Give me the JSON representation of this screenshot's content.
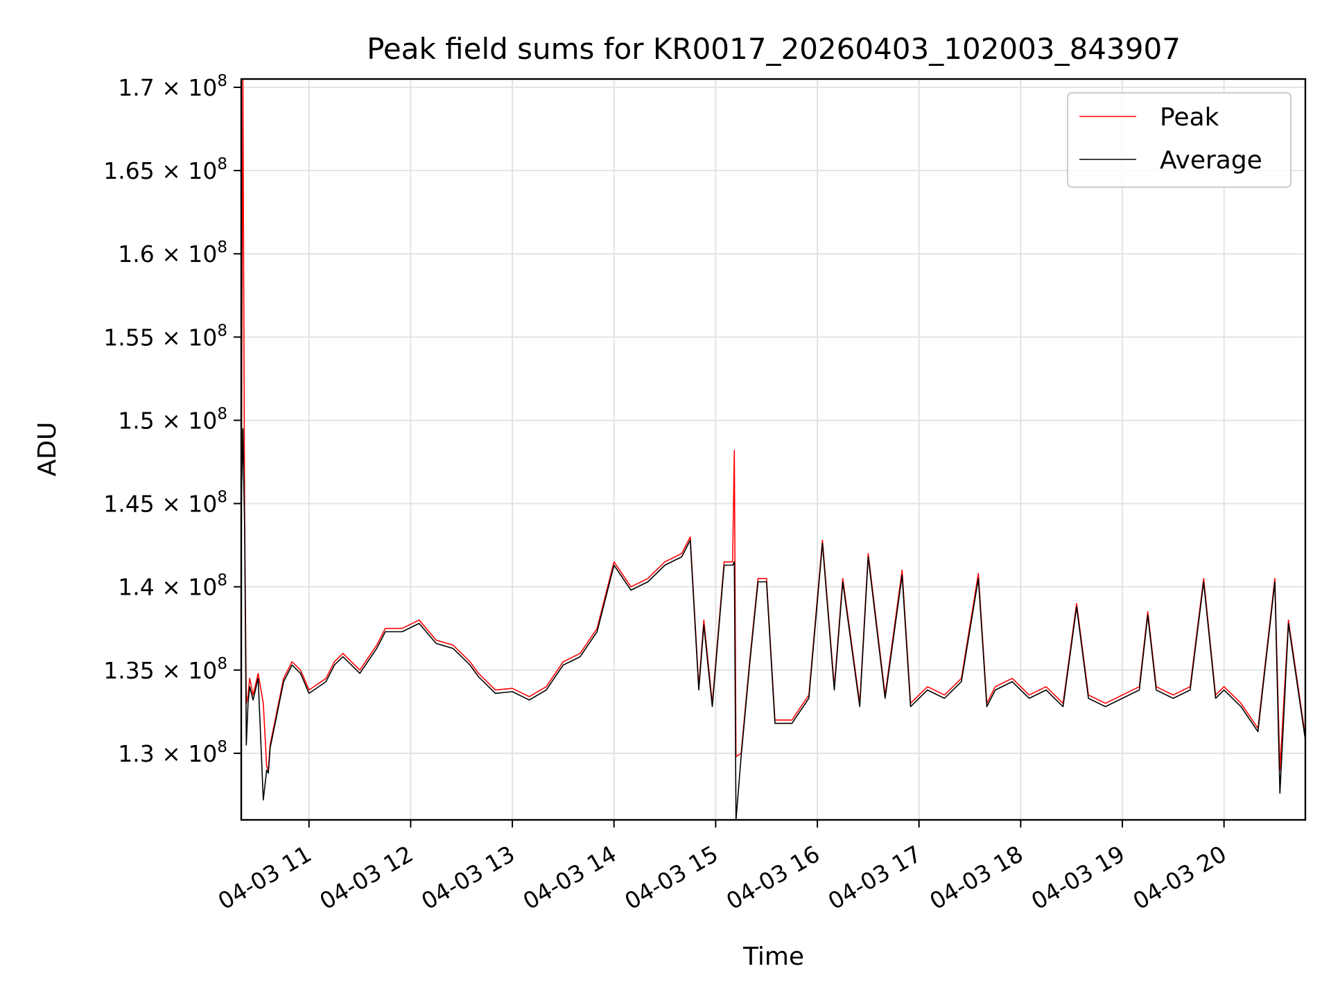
{
  "chart_data": {
    "type": "line",
    "title": "Peak field sums for KR0017_20260403_102003_843907",
    "xlabel": "Time",
    "ylabel": "ADU",
    "xlim": [
      "04-03 10:20",
      "04-03 20:48"
    ],
    "ylim": [
      126000000,
      170500000
    ],
    "grid": true,
    "legend_position": "top-right",
    "x_ticks": [
      "04-03 11",
      "04-03 12",
      "04-03 13",
      "04-03 14",
      "04-03 15",
      "04-03 16",
      "04-03 17",
      "04-03 18",
      "04-03 19",
      "04-03 20"
    ],
    "y_ticks": [
      {
        "value": 130000000,
        "mantissa": "1.3"
      },
      {
        "value": 135000000,
        "mantissa": "1.35"
      },
      {
        "value": 140000000,
        "mantissa": "1.4"
      },
      {
        "value": 145000000,
        "mantissa": "1.45"
      },
      {
        "value": 150000000,
        "mantissa": "1.5"
      },
      {
        "value": 155000000,
        "mantissa": "1.55"
      },
      {
        "value": 160000000,
        "mantissa": "1.6"
      },
      {
        "value": 165000000,
        "mantissa": "1.65"
      },
      {
        "value": 170000000,
        "mantissa": "1.7"
      }
    ],
    "y_tick_suffix": "× 10",
    "y_tick_exponent": "8",
    "series": [
      {
        "name": "Peak",
        "color": "#ff0000",
        "x": [
          "04-03 10:20",
          "04-03 10:21",
          "04-03 10:22",
          "04-03 10:23",
          "04-03 10:24",
          "04-03 10:25",
          "04-03 10:27",
          "04-03 10:30",
          "04-03 10:33",
          "04-03 10:35",
          "04-03 10:36",
          "04-03 10:37",
          "04-03 10:40",
          "04-03 10:45",
          "04-03 10:50",
          "04-03 10:55",
          "04-03 11:00",
          "04-03 11:10",
          "04-03 11:15",
          "04-03 11:20",
          "04-03 11:30",
          "04-03 11:40",
          "04-03 11:45",
          "04-03 11:55",
          "04-03 12:05",
          "04-03 12:15",
          "04-03 12:25",
          "04-03 12:35",
          "04-03 12:40",
          "04-03 12:50",
          "04-03 13:00",
          "04-03 13:10",
          "04-03 13:20",
          "04-03 13:30",
          "04-03 13:40",
          "04-03 13:50",
          "04-03 14:00",
          "04-03 14:10",
          "04-03 14:20",
          "04-03 14:30",
          "04-03 14:40",
          "04-03 14:45",
          "04-03 14:50",
          "04-03 14:53",
          "04-03 14:58",
          "04-03 15:05",
          "04-03 15:10",
          "04-03 15:11",
          "04-03 15:12",
          "04-03 15:15",
          "04-03 15:20",
          "04-03 15:25",
          "04-03 15:30",
          "04-03 15:35",
          "04-03 15:45",
          "04-03 15:55",
          "04-03 16:03",
          "04-03 16:10",
          "04-03 16:15",
          "04-03 16:25",
          "04-03 16:30",
          "04-03 16:40",
          "04-03 16:50",
          "04-03 16:55",
          "04-03 17:05",
          "04-03 17:15",
          "04-03 17:25",
          "04-03 17:35",
          "04-03 17:40",
          "04-03 17:45",
          "04-03 17:55",
          "04-03 18:05",
          "04-03 18:15",
          "04-03 18:25",
          "04-03 18:33",
          "04-03 18:40",
          "04-03 18:50",
          "04-03 19:00",
          "04-03 19:10",
          "04-03 19:15",
          "04-03 19:20",
          "04-03 19:30",
          "04-03 19:40",
          "04-03 19:48",
          "04-03 19:55",
          "04-03 20:00",
          "04-03 20:10",
          "04-03 20:20",
          "04-03 20:30",
          "04-03 20:33",
          "04-03 20:38",
          "04-03 20:43",
          "04-03 20:48"
        ],
        "y": [
          144800000,
          170500000,
          144200000,
          133000000,
          133500000,
          134500000,
          133500000,
          134800000,
          133000000,
          129200000,
          129000000,
          130500000,
          132000000,
          134500000,
          135500000,
          135000000,
          133800000,
          134500000,
          135500000,
          136000000,
          135000000,
          136500000,
          137500000,
          137500000,
          138000000,
          136800000,
          136500000,
          135500000,
          134800000,
          133800000,
          133900000,
          133400000,
          134000000,
          135500000,
          136000000,
          137500000,
          141500000,
          140000000,
          140500000,
          141500000,
          142000000,
          143000000,
          134000000,
          138000000,
          133000000,
          141500000,
          141500000,
          148200000,
          129800000,
          130000000,
          135500000,
          140500000,
          140500000,
          132000000,
          132000000,
          133500000,
          142800000,
          134000000,
          140500000,
          133000000,
          142000000,
          133500000,
          141000000,
          133000000,
          134000000,
          133500000,
          134500000,
          140800000,
          133000000,
          134000000,
          134500000,
          133500000,
          134000000,
          133000000,
          139000000,
          133500000,
          133000000,
          133500000,
          134000000,
          138500000,
          134000000,
          133500000,
          134000000,
          140500000,
          133500000,
          134000000,
          133000000,
          131500000,
          140500000,
          129000000,
          138000000,
          134500000,
          131000000
        ]
      },
      {
        "name": "Average",
        "color": "#000000",
        "x": [
          "04-03 10:20",
          "04-03 10:21",
          "04-03 10:22",
          "04-03 10:23",
          "04-03 10:24",
          "04-03 10:25",
          "04-03 10:27",
          "04-03 10:30",
          "04-03 10:33",
          "04-03 10:35",
          "04-03 10:36",
          "04-03 10:37",
          "04-03 10:40",
          "04-03 10:45",
          "04-03 10:50",
          "04-03 10:55",
          "04-03 11:00",
          "04-03 11:10",
          "04-03 11:15",
          "04-03 11:20",
          "04-03 11:30",
          "04-03 11:40",
          "04-03 11:45",
          "04-03 11:55",
          "04-03 12:05",
          "04-03 12:15",
          "04-03 12:25",
          "04-03 12:35",
          "04-03 12:40",
          "04-03 12:50",
          "04-03 13:00",
          "04-03 13:10",
          "04-03 13:20",
          "04-03 13:30",
          "04-03 13:40",
          "04-03 13:50",
          "04-03 14:00",
          "04-03 14:10",
          "04-03 14:20",
          "04-03 14:30",
          "04-03 14:40",
          "04-03 14:45",
          "04-03 14:50",
          "04-03 14:53",
          "04-03 14:58",
          "04-03 15:05",
          "04-03 15:10",
          "04-03 15:11",
          "04-03 15:12",
          "04-03 15:15",
          "04-03 15:20",
          "04-03 15:25",
          "04-03 15:30",
          "04-03 15:35",
          "04-03 15:45",
          "04-03 15:55",
          "04-03 16:03",
          "04-03 16:10",
          "04-03 16:15",
          "04-03 16:25",
          "04-03 16:30",
          "04-03 16:40",
          "04-03 16:50",
          "04-03 16:55",
          "04-03 17:05",
          "04-03 17:15",
          "04-03 17:25",
          "04-03 17:35",
          "04-03 17:40",
          "04-03 17:45",
          "04-03 17:55",
          "04-03 18:05",
          "04-03 18:15",
          "04-03 18:25",
          "04-03 18:33",
          "04-03 18:40",
          "04-03 18:50",
          "04-03 19:00",
          "04-03 19:10",
          "04-03 19:15",
          "04-03 19:20",
          "04-03 19:30",
          "04-03 19:40",
          "04-03 19:48",
          "04-03 19:55",
          "04-03 20:00",
          "04-03 20:10",
          "04-03 20:20",
          "04-03 20:30",
          "04-03 20:33",
          "04-03 20:38",
          "04-03 20:43",
          "04-03 20:48"
        ],
        "y": [
          144500000,
          149500000,
          143500000,
          130500000,
          133000000,
          134000000,
          133200000,
          134500000,
          127200000,
          129000000,
          128800000,
          130300000,
          131800000,
          134300000,
          135300000,
          134800000,
          133600000,
          134300000,
          135300000,
          135800000,
          134800000,
          136300000,
          137300000,
          137300000,
          137800000,
          136600000,
          136300000,
          135300000,
          134600000,
          133600000,
          133700000,
          133200000,
          133800000,
          135300000,
          135800000,
          137300000,
          141300000,
          139800000,
          140300000,
          141300000,
          141800000,
          142800000,
          133800000,
          137700000,
          132800000,
          141300000,
          141300000,
          141500000,
          126000000,
          129800000,
          135300000,
          140300000,
          140300000,
          131800000,
          131800000,
          133300000,
          142600000,
          133800000,
          140300000,
          132800000,
          141800000,
          133300000,
          140700000,
          132800000,
          133800000,
          133300000,
          134300000,
          140500000,
          132800000,
          133800000,
          134300000,
          133300000,
          133800000,
          132800000,
          138800000,
          133300000,
          132800000,
          133300000,
          133800000,
          138300000,
          133800000,
          133300000,
          133800000,
          140300000,
          133300000,
          133800000,
          132800000,
          131300000,
          140300000,
          127600000,
          137800000,
          134300000,
          130800000
        ]
      }
    ]
  }
}
